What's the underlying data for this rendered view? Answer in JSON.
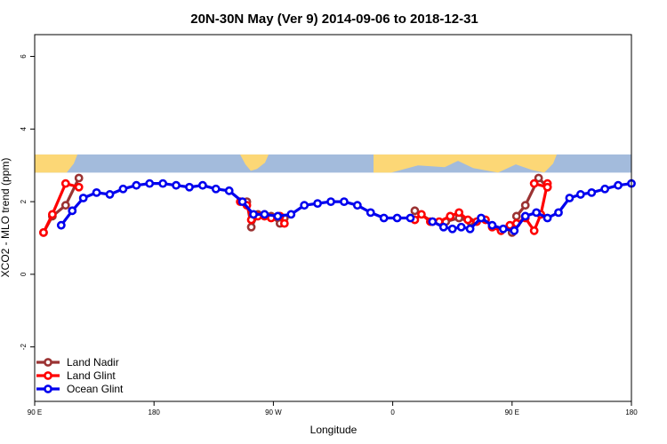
{
  "chart_data": {
    "type": "line",
    "title": "20N-30N May (Ver 9)   2014-09-06 to 2018-12-31",
    "xlabel": "Longitude",
    "ylabel": "XCO2 - MLO trend (ppm)",
    "xlim": [
      -90,
      180
    ],
    "ylim": [
      -3.5,
      6.6
    ],
    "x_ticks": [
      {
        "value": -90,
        "label": "90 E"
      },
      {
        "value": -36,
        "label": "180"
      },
      {
        "value": 18,
        "label": "90 W"
      },
      {
        "value": 72,
        "label": "0"
      },
      {
        "value": 126,
        "label": "90 E"
      },
      {
        "value": 180,
        "label": "180"
      }
    ],
    "y_ticks": [
      -2,
      0,
      2,
      4,
      6
    ],
    "grid": false,
    "legend_position": "bottom-left",
    "map_band": {
      "y_range": [
        2.8,
        3.3
      ],
      "ocean_color": "#a3bbdc",
      "land_color": "#fcd776"
    },
    "series": [
      {
        "name": "Land Nadir",
        "color": "#9b3333",
        "segments": [
          {
            "x": [
              -86,
              -82,
              -76,
              -70
            ],
            "y": [
              1.15,
              1.6,
              1.9,
              2.65
            ]
          },
          {
            "x": [
              6,
              8,
              11,
              14,
              17,
              21,
              23
            ],
            "y": [
              2.0,
              1.3,
              1.65,
              1.65,
              1.6,
              1.4,
              1.55
            ]
          },
          {
            "x": [
              82,
              90,
              96,
              102,
              107
            ],
            "y": [
              1.75,
              1.45,
              1.45,
              1.55,
              1.45
            ]
          },
          {
            "x": [
              126,
              128,
              132,
              138,
              142
            ],
            "y": [
              1.15,
              1.6,
              1.9,
              2.65,
              2.4
            ]
          }
        ]
      },
      {
        "name": "Land Glint",
        "color": "#ff0000",
        "segments": [
          {
            "x": [
              -86,
              -82,
              -76,
              -70
            ],
            "y": [
              1.15,
              1.65,
              2.5,
              2.4
            ]
          },
          {
            "x": [
              3,
              6,
              8,
              11,
              14,
              17,
              21,
              23
            ],
            "y": [
              2.0,
              1.9,
              1.5,
              1.6,
              1.6,
              1.55,
              1.6,
              1.4
            ]
          },
          {
            "x": [
              82,
              85,
              89,
              93,
              98,
              102,
              106,
              110,
              114,
              117,
              121,
              125,
              128,
              132,
              136,
              139,
              142
            ],
            "y": [
              1.5,
              1.65,
              1.45,
              1.45,
              1.6,
              1.7,
              1.5,
              1.45,
              1.5,
              1.3,
              1.2,
              1.35,
              1.4,
              1.55,
              1.2,
              1.65,
              2.5
            ]
          },
          {
            "x": [
              136,
              142
            ],
            "y": [
              2.5,
              2.4
            ]
          }
        ]
      },
      {
        "name": "Ocean Glint",
        "color": "#0000ee",
        "segments": [
          {
            "x": [
              -78,
              -73,
              -68,
              -62,
              -56,
              -50,
              -44,
              -38,
              -32,
              -26,
              -20,
              -14,
              -8,
              -2,
              4,
              9,
              14,
              20,
              26,
              32,
              38,
              44,
              50,
              56,
              62,
              68,
              74,
              80
            ],
            "y": [
              1.35,
              1.75,
              2.1,
              2.25,
              2.2,
              2.35,
              2.45,
              2.5,
              2.5,
              2.45,
              2.4,
              2.45,
              2.35,
              2.3,
              2.0,
              1.65,
              1.65,
              1.6,
              1.65,
              1.9,
              1.95,
              2.0,
              2.0,
              1.9,
              1.7,
              1.55,
              1.55,
              1.55
            ]
          },
          {
            "x": [
              90,
              95,
              99,
              103,
              107,
              112,
              117,
              122,
              127,
              132,
              137,
              142,
              147,
              152,
              157,
              162,
              168,
              174,
              180
            ],
            "y": [
              1.45,
              1.3,
              1.25,
              1.3,
              1.25,
              1.55,
              1.35,
              1.25,
              1.2,
              1.6,
              1.7,
              1.55,
              1.7,
              2.1,
              2.2,
              2.25,
              2.35,
              2.45,
              2.5
            ]
          }
        ]
      }
    ]
  }
}
